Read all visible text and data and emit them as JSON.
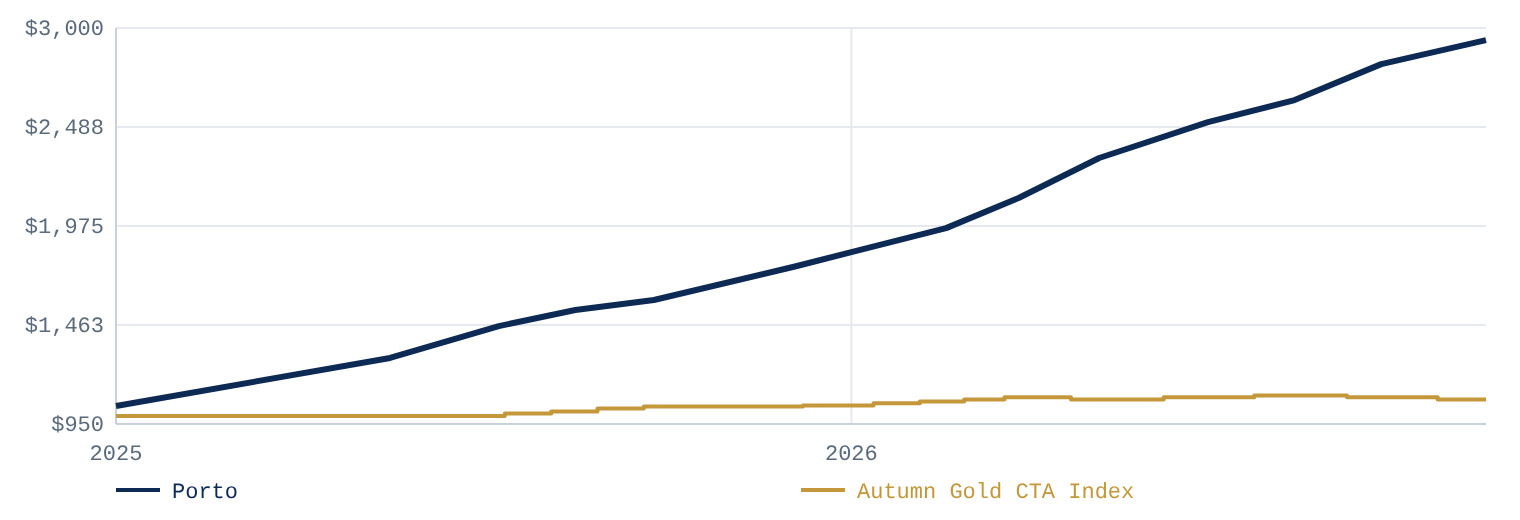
{
  "chart_data": {
    "type": "line",
    "xlim": [
      "2025-01-01",
      "2026-11-12"
    ],
    "ylim": [
      950,
      3000
    ],
    "xticks": [
      {
        "value": "2025-01-01",
        "label": "2025"
      },
      {
        "value": "2026-01-01",
        "label": "2026"
      }
    ],
    "yticks": [
      {
        "value": 950,
        "label": "$950"
      },
      {
        "value": 1463,
        "label": "$1,463"
      },
      {
        "value": 1975,
        "label": "$1,975"
      },
      {
        "value": 2488,
        "label": "$2,488"
      },
      {
        "value": 3000,
        "label": "$3,000"
      }
    ],
    "grid": true,
    "legend": "bottom",
    "line_style": "solid",
    "series": [
      {
        "name": "Porto",
        "color": "#0d2a55",
        "x": [
          "2025-01-01",
          "2025-05-17",
          "2025-07-10",
          "2025-08-17",
          "2025-09-25",
          "2025-12-05",
          "2026-01-01",
          "2026-02-17",
          "2026-03-25",
          "2026-05-04",
          "2026-06-27",
          "2026-08-09",
          "2026-09-21",
          "2026-11-12"
        ],
        "values": [
          1043,
          1292,
          1457,
          1540,
          1592,
          1768,
          1840,
          1964,
          2120,
          2327,
          2513,
          2627,
          2813,
          2937
        ]
      },
      {
        "name": "Autumn Gold CTA Index",
        "type": "step",
        "color": "#c4983a",
        "x": [
          "2025-01-01",
          "2025-07-13",
          "2025-08-05",
          "2025-08-28",
          "2025-09-20",
          "2025-12-08",
          "2026-01-12",
          "2026-02-04",
          "2026-02-26",
          "2026-03-18",
          "2026-04-20",
          "2026-06-05",
          "2026-07-20",
          "2026-09-04",
          "2026-10-19",
          "2026-11-12"
        ],
        "values": [
          991,
          1005,
          1015,
          1030,
          1040,
          1046,
          1057,
          1067,
          1077,
          1088,
          1077,
          1088,
          1098,
          1088,
          1077,
          1077
        ]
      }
    ]
  }
}
